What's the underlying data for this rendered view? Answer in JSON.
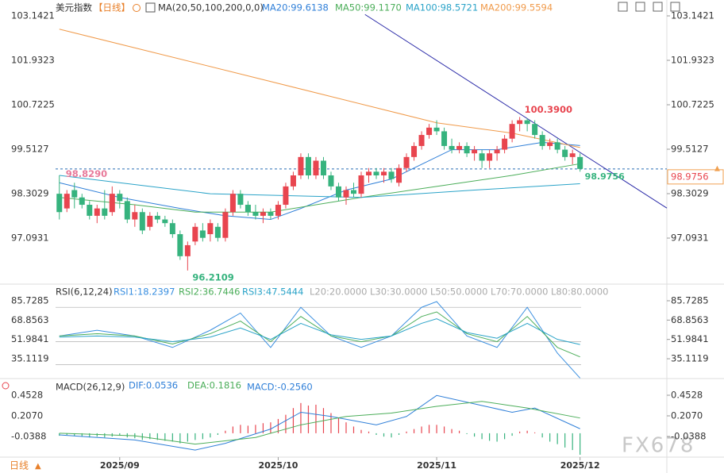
{
  "chart_data": [
    {
      "type": "candlestick",
      "title": "美元指数",
      "period": "【日线】",
      "indicator": "MA(20,50,100,200,0,0)",
      "xlim": [
        -0.5,
        80.5
      ],
      "ylim": [
        95.905,
        103.466
      ],
      "yticks": [
        103.1421,
        101.9323,
        100.7225,
        99.5127,
        98.3029,
        97.0931
      ],
      "up_color": "#e8454f",
      "down_color": "#36b37e",
      "ohlc": [
        [
          98.3,
          98.8,
          97.6,
          97.8
        ],
        [
          97.9,
          98.4,
          97.8,
          98.3
        ],
        [
          98.4,
          98.6,
          97.9,
          98.2
        ],
        [
          98.2,
          98.3,
          97.9,
          98.0
        ],
        [
          98.0,
          98.1,
          97.6,
          97.7
        ],
        [
          97.7,
          98.0,
          97.5,
          97.9
        ],
        [
          97.9,
          98.4,
          97.6,
          97.7
        ],
        [
          97.8,
          98.5,
          97.7,
          98.3
        ],
        [
          98.3,
          98.4,
          97.9,
          98.1
        ],
        [
          98.1,
          98.2,
          97.5,
          97.6
        ],
        [
          97.6,
          98.0,
          97.4,
          97.8
        ],
        [
          97.8,
          97.9,
          97.2,
          97.3
        ],
        [
          97.4,
          97.8,
          97.3,
          97.7
        ],
        [
          97.7,
          97.8,
          97.5,
          97.6
        ],
        [
          97.6,
          97.7,
          97.4,
          97.5
        ],
        [
          97.5,
          97.6,
          97.1,
          97.2
        ],
        [
          97.2,
          97.3,
          96.5,
          96.6
        ],
        [
          96.6,
          97.0,
          96.2109,
          96.9
        ],
        [
          97.0,
          97.5,
          96.9,
          97.4
        ],
        [
          97.3,
          97.5,
          97.0,
          97.1
        ],
        [
          97.2,
          97.6,
          97.0,
          97.5
        ],
        [
          97.4,
          97.5,
          97.0,
          97.1
        ],
        [
          97.1,
          97.9,
          97.0,
          97.8
        ],
        [
          97.8,
          98.4,
          97.7,
          98.3
        ],
        [
          98.3,
          98.4,
          97.9,
          98.0
        ],
        [
          98.0,
          98.1,
          97.7,
          97.8
        ],
        [
          97.8,
          98.0,
          97.6,
          97.7
        ],
        [
          97.7,
          97.9,
          97.5,
          97.8
        ],
        [
          97.8,
          97.9,
          97.6,
          97.7
        ],
        [
          97.7,
          98.1,
          97.6,
          98.0
        ],
        [
          98.0,
          98.6,
          97.9,
          98.5
        ],
        [
          98.5,
          98.9,
          98.4,
          98.8
        ],
        [
          98.8,
          99.4,
          98.7,
          99.3
        ],
        [
          99.3,
          99.4,
          98.7,
          98.8
        ],
        [
          98.8,
          99.3,
          98.7,
          99.2
        ],
        [
          99.2,
          99.3,
          98.7,
          98.8
        ],
        [
          98.8,
          98.9,
          98.4,
          98.5
        ],
        [
          98.5,
          98.6,
          98.1,
          98.2
        ],
        [
          98.2,
          98.5,
          98.0,
          98.4
        ],
        [
          98.4,
          98.6,
          98.2,
          98.3
        ],
        [
          98.3,
          98.9,
          98.2,
          98.8
        ],
        [
          98.8,
          99.0,
          98.6,
          98.9
        ],
        [
          98.9,
          99.0,
          98.7,
          98.8
        ],
        [
          98.8,
          99.0,
          98.6,
          98.9
        ],
        [
          98.9,
          99.0,
          98.6,
          98.7
        ],
        [
          98.6,
          99.1,
          98.5,
          99.0
        ],
        [
          99.0,
          99.4,
          98.9,
          99.3
        ],
        [
          99.3,
          99.7,
          99.2,
          99.6
        ],
        [
          99.6,
          100.0,
          99.5,
          99.9
        ],
        [
          99.9,
          100.2,
          99.8,
          100.1
        ],
        [
          100.1,
          100.3,
          99.9,
          100.0
        ],
        [
          100.0,
          100.1,
          99.5,
          99.6
        ],
        [
          99.6,
          99.8,
          99.4,
          99.5
        ],
        [
          99.5,
          99.7,
          99.4,
          99.6
        ],
        [
          99.6,
          99.7,
          99.3,
          99.4
        ],
        [
          99.4,
          99.6,
          99.2,
          99.5
        ],
        [
          99.4,
          99.5,
          99.0,
          99.2
        ],
        [
          99.2,
          99.5,
          99.0,
          99.4
        ],
        [
          99.4,
          99.6,
          99.2,
          99.5
        ],
        [
          99.5,
          99.9,
          99.4,
          99.8
        ],
        [
          99.8,
          100.3,
          99.7,
          100.2
        ],
        [
          100.2,
          100.39,
          100.0,
          100.3
        ],
        [
          100.3,
          100.35,
          100.0,
          100.2
        ],
        [
          100.2,
          100.3,
          99.8,
          99.9
        ],
        [
          99.9,
          100.0,
          99.5,
          99.6
        ],
        [
          99.6,
          99.8,
          99.5,
          99.7
        ],
        [
          99.7,
          99.8,
          99.4,
          99.5
        ],
        [
          99.5,
          99.6,
          99.2,
          99.3
        ],
        [
          99.3,
          99.5,
          99.1,
          99.4
        ],
        [
          99.3,
          99.4,
          98.9,
          98.9756
        ]
      ],
      "series": [
        {
          "name": "MA20:99.6138",
          "color": "#2f7fd8",
          "x": [
            0,
            8,
            16,
            22,
            28,
            32,
            38,
            44,
            48,
            52,
            58,
            64,
            69
          ],
          "values": [
            98.6,
            98.2,
            97.9,
            97.7,
            97.6,
            97.9,
            98.4,
            98.7,
            99.1,
            99.5,
            99.5,
            99.7,
            99.6138
          ]
        },
        {
          "name": "MA50:99.1170",
          "color": "#4cae5a",
          "x": [
            0,
            10,
            18,
            28,
            40,
            50,
            60,
            69
          ],
          "values": [
            98.2,
            98.0,
            97.8,
            97.8,
            98.2,
            98.5,
            98.8,
            99.117
          ]
        },
        {
          "name": "MA100:98.5721",
          "color": "#2aa3c8",
          "x": [
            0,
            20,
            40,
            55,
            69
          ],
          "values": [
            98.8,
            98.3,
            98.2,
            98.4,
            98.5721
          ]
        },
        {
          "name": "MA200:99.5594",
          "color": "#f09a4a",
          "x": [
            0,
            24,
            50,
            60,
            69
          ],
          "values": [
            102.78,
            101.56,
            100.23,
            99.95,
            99.5594
          ]
        }
      ],
      "trendline": {
        "color": "#2a2aa8",
        "x": [
          40.5,
          80.5
        ],
        "values": [
          103.18,
          97.91
        ]
      },
      "annotations": [
        {
          "label": "100.3900",
          "value": 100.39,
          "x": 61,
          "color": "#e8454f"
        },
        {
          "label": "96.2109",
          "value": 96.2109,
          "x": 17,
          "color": "#36b37e"
        },
        {
          "label": "98.8290",
          "value": 98.829,
          "x": 0,
          "color": "#e87a9a"
        }
      ],
      "last_price": {
        "label": "98.9756",
        "value": 98.9756,
        "x": 69
      }
    },
    {
      "type": "line",
      "title": "RSI(6,12,24)",
      "xlim": [
        -0.5,
        80.5
      ],
      "ylim": [
        19.22,
        97.48
      ],
      "yticks": [
        85.7285,
        68.8563,
        51.9841,
        35.1119
      ],
      "levels": [
        {
          "value": 20,
          "label": "L20:20.0000"
        },
        {
          "value": 30,
          "label": "L30:30.0000"
        },
        {
          "value": 50,
          "label": "L50:50.0000"
        },
        {
          "value": 70,
          "label": "L70:70.0000"
        },
        {
          "value": 80,
          "label": "L80:80.0000"
        }
      ],
      "series": [
        {
          "name": "RSI1:18.2397",
          "color": "#3a8fe0",
          "x": [
            0,
            5,
            10,
            15,
            20,
            24,
            28,
            32,
            36,
            40,
            44,
            48,
            50,
            54,
            58,
            62,
            66,
            69
          ],
          "values": [
            55,
            60,
            55,
            45,
            60,
            75,
            45,
            80,
            55,
            45,
            55,
            80,
            85,
            55,
            45,
            80,
            40,
            18.2397
          ]
        },
        {
          "name": "RSI2:36.7446",
          "color": "#4cae5a",
          "x": [
            0,
            5,
            10,
            15,
            20,
            24,
            28,
            32,
            36,
            40,
            44,
            48,
            50,
            54,
            58,
            62,
            66,
            69
          ],
          "values": [
            55,
            57,
            55,
            48,
            57,
            68,
            50,
            72,
            55,
            50,
            55,
            72,
            76,
            57,
            50,
            72,
            45,
            36.7446
          ]
        },
        {
          "name": "RSI3:47.5444",
          "color": "#2aa3c8",
          "x": [
            0,
            5,
            10,
            15,
            20,
            24,
            28,
            32,
            36,
            40,
            44,
            48,
            50,
            54,
            58,
            62,
            66,
            69
          ],
          "values": [
            54,
            55,
            54,
            50,
            54,
            62,
            52,
            66,
            56,
            52,
            55,
            66,
            70,
            58,
            53,
            66,
            52,
            47.5444
          ]
        }
      ]
    },
    {
      "type": "macd",
      "title": "MACD(26,12,9)",
      "xlim": [
        -0.5,
        80.5
      ],
      "ylim": [
        -0.275,
        0.623
      ],
      "yticks": [
        0.4528,
        {
          "value": 0.207,
          "label": "0.2070"
        },
        -0.0388
      ],
      "xticks": [
        {
          "value": 8,
          "label": "2025/09"
        },
        {
          "value": 29,
          "label": "2025/10"
        },
        {
          "value": 50,
          "label": "2025/11"
        },
        {
          "value": 69,
          "label": "2025/12"
        }
      ],
      "series": [
        {
          "name": "DIF:0.0536",
          "color": "#2f7fd8",
          "x": [
            0,
            10,
            18,
            22,
            28,
            32,
            36,
            42,
            46,
            50,
            55,
            60,
            63,
            69
          ],
          "values": [
            -0.02,
            -0.08,
            -0.2,
            -0.12,
            0.05,
            0.25,
            0.2,
            0.1,
            0.2,
            0.45,
            0.35,
            0.25,
            0.3,
            0.0536
          ]
        },
        {
          "name": "DEA:0.1816",
          "color": "#4cae5a",
          "x": [
            0,
            10,
            18,
            26,
            32,
            38,
            44,
            50,
            56,
            62,
            69
          ],
          "values": [
            0.0,
            -0.03,
            -0.13,
            -0.05,
            0.1,
            0.2,
            0.24,
            0.32,
            0.38,
            0.3,
            0.1816
          ]
        }
      ],
      "histogram": {
        "name": "MACD:-0.2560",
        "up_color": "#e8454f",
        "down_color": "#36b37e",
        "values": [
          -0.03,
          -0.02,
          -0.03,
          -0.04,
          -0.05,
          -0.04,
          -0.05,
          -0.04,
          -0.03,
          -0.05,
          -0.06,
          -0.08,
          -0.07,
          -0.08,
          -0.09,
          -0.1,
          -0.12,
          -0.1,
          -0.08,
          -0.07,
          -0.05,
          -0.02,
          0.03,
          0.08,
          0.1,
          0.09,
          0.1,
          0.12,
          0.13,
          0.17,
          0.22,
          0.3,
          0.36,
          0.33,
          0.34,
          0.3,
          0.24,
          0.18,
          0.13,
          0.08,
          0.04,
          0.02,
          -0.02,
          -0.04,
          -0.05,
          -0.02,
          0.02,
          0.05,
          0.08,
          0.1,
          0.1,
          0.08,
          0.05,
          0.03,
          -0.01,
          -0.04,
          -0.07,
          -0.09,
          -0.1,
          -0.07,
          -0.03,
          0.02,
          0.03,
          0.01,
          -0.05,
          -0.1,
          -0.13,
          -0.17,
          -0.2,
          -0.256
        ]
      }
    }
  ],
  "footer": {
    "period": "日线",
    "arrow": "▲"
  },
  "watermark": "FX678"
}
